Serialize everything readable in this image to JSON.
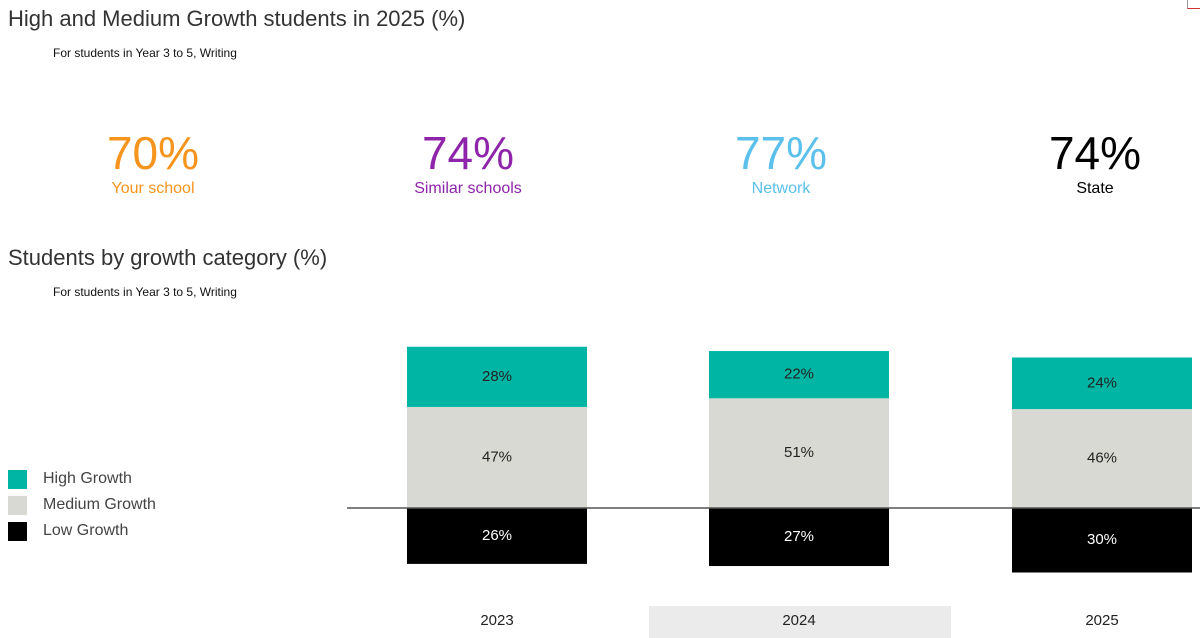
{
  "header": {
    "title": "High and Medium Growth students in 2025 (%)",
    "subtitle": "For students in Year 3 to 5, Writing"
  },
  "kpis": [
    {
      "value": "70%",
      "label": "Your school",
      "color": "#f7941d"
    },
    {
      "value": "74%",
      "label": "Similar schools",
      "color": "#8e24aa"
    },
    {
      "value": "77%",
      "label": "Network",
      "color": "#5bc0eb"
    },
    {
      "value": "74%",
      "label": "State",
      "color": "#000000"
    }
  ],
  "section2": {
    "title": "Students by growth category (%)",
    "subtitle": "For students in Year 3 to 5, Writing"
  },
  "legend": [
    {
      "label": "High Growth",
      "color": "#00b5a3"
    },
    {
      "label": "Medium Growth",
      "color": "#d9d9d4"
    },
    {
      "label": "Low Growth",
      "color": "#000000"
    }
  ],
  "chart_data": {
    "type": "bar",
    "stacked": true,
    "baseline": "Low Growth below the axis line, Medium and High Growth above",
    "categories": [
      "2023",
      "2024",
      "2025"
    ],
    "highlighted_category": "2024",
    "series": [
      {
        "name": "High Growth",
        "values": [
          28,
          22,
          24
        ],
        "labels": [
          "28%",
          "22%",
          "24%"
        ],
        "color": "#00b5a3"
      },
      {
        "name": "Medium Growth",
        "values": [
          47,
          51,
          46
        ],
        "labels": [
          "47%",
          "51%",
          "46%"
        ],
        "color": "#d9d9d4"
      },
      {
        "name": "Low Growth",
        "values": [
          26,
          27,
          30
        ],
        "labels": [
          "26%",
          "27%",
          "30%"
        ],
        "color": "#000000"
      }
    ],
    "grid": false,
    "legend_position": "left"
  }
}
